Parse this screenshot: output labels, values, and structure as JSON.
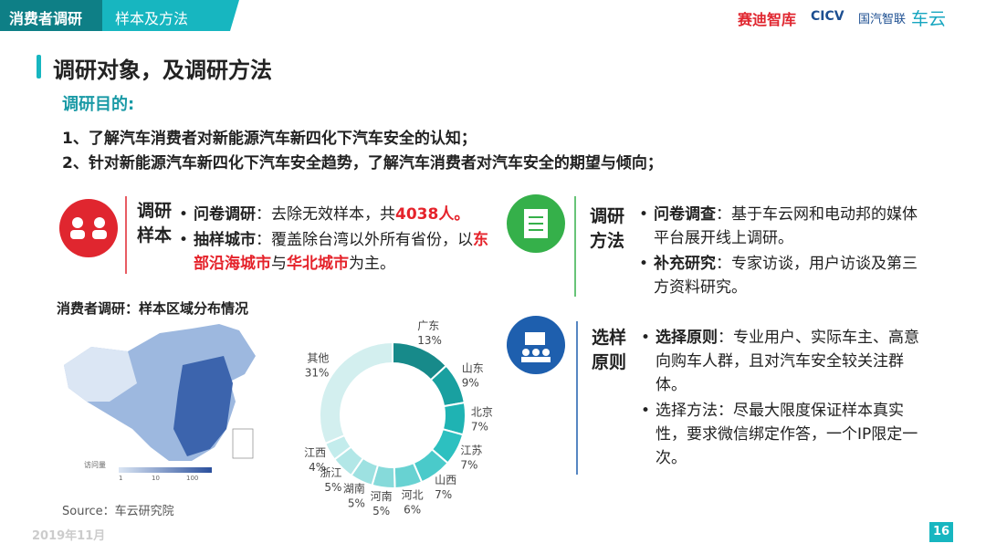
{
  "header": {
    "tab": "消费者调研",
    "subtitle": "样本及方法",
    "logos": [
      "赛迪智库",
      "CICV",
      "国汽智联",
      "车云"
    ]
  },
  "title": "调研对象，及调研方法",
  "purpose": {
    "heading": "调研目的:",
    "items": [
      "1、了解汽车消费者对新能源汽车新四化下汽车安全的认知；",
      "2、针对新能源汽车新四化下汽车安全趋势，了解汽车消费者对汽车安全的期望与倾向；"
    ]
  },
  "sections": [
    {
      "label": [
        "调研",
        "样本"
      ],
      "bullets": [
        [
          {
            "t": "问卷调研",
            "s": "b"
          },
          {
            "t": "：去除无效样本，共",
            "s": "n"
          },
          {
            "t": "4038人。",
            "s": "r"
          }
        ],
        [
          {
            "t": "抽样城市",
            "s": "b"
          },
          {
            "t": "：覆盖除台湾以外所有省份，以",
            "s": "n"
          },
          {
            "t": "东部沿海城市",
            "s": "r"
          },
          {
            "t": "与",
            "s": "n"
          },
          {
            "t": "华北城市",
            "s": "r"
          },
          {
            "t": "为主。",
            "s": "n"
          }
        ]
      ]
    },
    {
      "label": [
        "调研",
        "方法"
      ],
      "bullets": [
        [
          {
            "t": "问卷调查",
            "s": "b"
          },
          {
            "t": "：基于车云网和电动邦的媒体平台展开线上调研。",
            "s": "n"
          }
        ],
        [
          {
            "t": "补充研究",
            "s": "b"
          },
          {
            "t": "：专家访谈，用户访谈及第三方资料研究。",
            "s": "n"
          }
        ]
      ]
    },
    {
      "label": [
        "选样",
        "原则"
      ],
      "bullets": [
        [
          {
            "t": "选择原则",
            "s": "b"
          },
          {
            "t": "：专业用户、实际车主、高意向购车人群，且对汽车安全较关注群体。",
            "s": "n"
          }
        ],
        [
          {
            "t": "选择方法：尽最大限度保证样本真实性，要求微信绑定作答，一个IP限定一次。",
            "s": "n"
          }
        ]
      ]
    }
  ],
  "chart_heading": "消费者调研：样本区域分布情况",
  "map_legend": {
    "title": "访问量",
    "ticks": [
      "1",
      "10",
      "100"
    ]
  },
  "donut": {
    "categories": [
      "广东",
      "山东",
      "北京",
      "江苏",
      "山西",
      "河北",
      "河南",
      "湖南",
      "浙江",
      "江西",
      "其他"
    ],
    "values": [
      13,
      9,
      7,
      7,
      7,
      6,
      5,
      5,
      5,
      4,
      31
    ],
    "value_labels": [
      "13%",
      "9%",
      "7%",
      "7%",
      "7%",
      "6%",
      "5%",
      "5%",
      "5%",
      "4%",
      "31%"
    ],
    "colors": [
      "#178a8a",
      "#19a0a0",
      "#1fb3b3",
      "#2dc0c0",
      "#4acaca",
      "#68d2d2",
      "#86dada",
      "#9de1e1",
      "#b2e7e7",
      "#c3ecec",
      "#d3efef"
    ]
  },
  "source": "Source：车云研究院",
  "date": "2019年11月",
  "page": "16"
}
